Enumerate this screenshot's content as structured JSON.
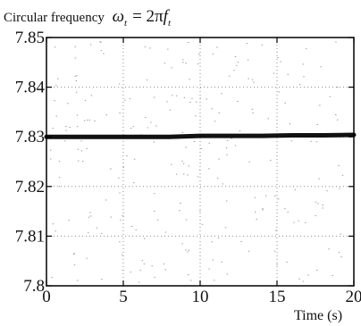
{
  "chart_data": {
    "type": "line",
    "title_prefix": "Circular frequency",
    "title_formula": {
      "omega": "ω",
      "sub": "t",
      "equals": "= 2",
      "pi": "π",
      "f": "f",
      "f_sub": "t"
    },
    "xlabel": "Time (s)",
    "ylabel": "",
    "xlim": [
      0,
      20
    ],
    "ylim": [
      7.8,
      7.85
    ],
    "x_ticks": [
      0,
      5,
      10,
      15,
      20
    ],
    "x_tick_labels": [
      "0",
      "5",
      "10",
      "15",
      "20"
    ],
    "y_ticks": [
      7.8,
      7.81,
      7.82,
      7.83,
      7.84,
      7.85
    ],
    "y_tick_labels": [
      "7.8",
      "7.81",
      "7.82",
      "7.83",
      "7.84",
      "7.85"
    ],
    "grid": true,
    "series": [
      {
        "x": [
          0,
          2,
          4,
          6,
          8,
          10,
          12,
          14,
          16,
          18,
          20
        ],
        "values": [
          7.83,
          7.83,
          7.83,
          7.83,
          7.83,
          7.8302,
          7.8302,
          7.8302,
          7.8303,
          7.8303,
          7.8304
        ]
      }
    ],
    "colors": {
      "line": "#111111",
      "grid": "#8c8c8c",
      "axes": "#000000"
    }
  }
}
